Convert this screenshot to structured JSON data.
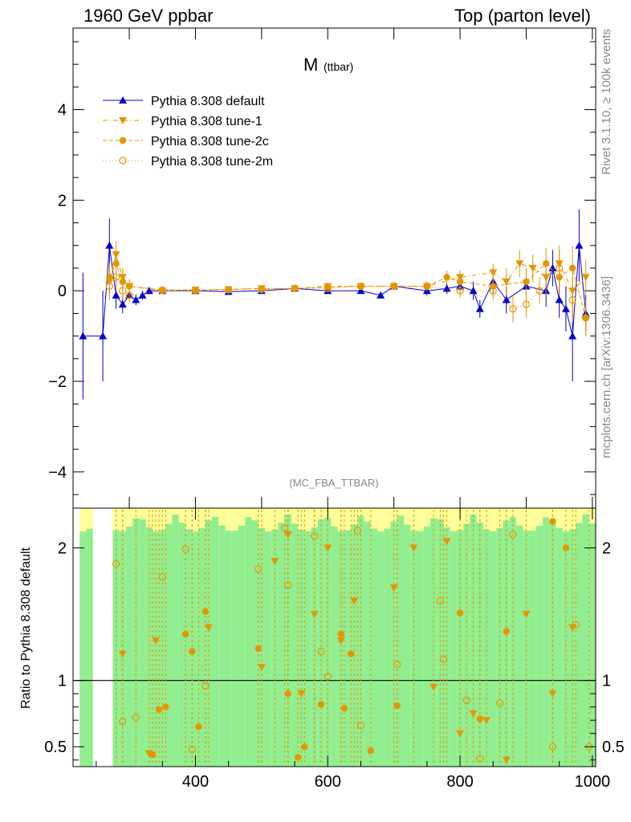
{
  "header": {
    "left": "1960 GeV ppbar",
    "right": "Top (parton level)"
  },
  "side_labels": {
    "rivet": "Rivet 3.1.10, ≥ 100k events",
    "mcplots": "mcplots.cern.ch [arXiv:1306.3436]"
  },
  "colors": {
    "default": "#0000cc",
    "tunes": "#e69500",
    "band_inner": "#90ee90",
    "band_outer": "#ffff99"
  },
  "chart_data": [
    {
      "type": "scatter",
      "title": "M",
      "title_sub": "(ttbar)",
      "watermark": "(MC_FBA_TTBAR)",
      "xlim": [
        215,
        1005
      ],
      "ylim": [
        -4.8,
        5.8
      ],
      "yticks": [
        4,
        2,
        0,
        -2,
        -4
      ],
      "ytick_labels": [
        "4",
        "2",
        "0",
        "−2",
        "−4"
      ],
      "legend": {
        "position": "top-left"
      },
      "series": [
        {
          "name": "Pythia 8.308 default",
          "marker": "triangle-up",
          "style": "solid",
          "x": [
            230,
            260,
            270,
            280,
            290,
            300,
            310,
            320,
            330,
            350,
            400,
            450,
            500,
            550,
            600,
            650,
            680,
            700,
            750,
            780,
            800,
            820,
            830,
            850,
            870,
            900,
            930,
            940,
            950,
            960,
            970,
            980,
            990
          ],
          "y": [
            -1.0,
            -1.0,
            1.0,
            -0.1,
            -0.3,
            -0.1,
            -0.2,
            -0.1,
            0.0,
            0.0,
            0.0,
            -0.02,
            0.0,
            0.05,
            0.0,
            0.0,
            -0.1,
            0.1,
            0.0,
            0.05,
            0.1,
            0.0,
            -0.4,
            0.2,
            -0.2,
            0.1,
            0.0,
            0.5,
            -0.2,
            -0.4,
            -1.0,
            1.0,
            -0.5
          ],
          "err": [
            1.4,
            1.0,
            0.6,
            0.3,
            0.2,
            0.15,
            0.12,
            0.1,
            0.08,
            0.05,
            0.03,
            0.03,
            0.03,
            0.03,
            0.04,
            0.05,
            0.06,
            0.06,
            0.1,
            0.12,
            0.15,
            0.2,
            0.2,
            0.3,
            0.3,
            0.3,
            0.35,
            0.4,
            0.4,
            0.5,
            1.0,
            0.8,
            0.4
          ]
        },
        {
          "name": "Pythia 8.308 tune-1",
          "marker": "triangle-down",
          "style": "dashdot",
          "x": [
            270,
            280,
            290,
            300,
            350,
            400,
            450,
            500,
            550,
            600,
            650,
            700,
            750,
            800,
            850,
            870,
            890,
            910,
            930,
            950,
            970,
            990
          ],
          "y": [
            0.2,
            0.8,
            0.3,
            0.1,
            0.0,
            0.02,
            0.03,
            0.05,
            0.05,
            0.1,
            0.1,
            0.1,
            0.1,
            0.3,
            0.4,
            0.2,
            0.6,
            0.5,
            0.3,
            0.6,
            0.0,
            0.3
          ],
          "err": [
            0.3,
            0.3,
            0.2,
            0.15,
            0.05,
            0.03,
            0.03,
            0.03,
            0.03,
            0.05,
            0.06,
            0.08,
            0.1,
            0.15,
            0.2,
            0.3,
            0.3,
            0.3,
            0.4,
            0.4,
            0.5,
            0.4
          ]
        },
        {
          "name": "Pythia 8.308 tune-2c",
          "marker": "circle",
          "style": "dashed",
          "x": [
            270,
            280,
            290,
            300,
            350,
            400,
            450,
            500,
            550,
            600,
            650,
            700,
            750,
            780,
            800,
            850,
            900,
            930,
            950,
            970,
            990
          ],
          "y": [
            0.3,
            0.6,
            0.2,
            0.1,
            0.02,
            0.02,
            0.03,
            0.05,
            0.05,
            0.08,
            0.1,
            0.1,
            0.1,
            0.3,
            0.2,
            0.1,
            0.2,
            0.6,
            0.3,
            0.5,
            -0.6
          ],
          "err": [
            0.3,
            0.3,
            0.2,
            0.15,
            0.05,
            0.03,
            0.03,
            0.03,
            0.03,
            0.05,
            0.06,
            0.08,
            0.1,
            0.15,
            0.2,
            0.25,
            0.3,
            0.35,
            0.4,
            0.5,
            0.4
          ]
        },
        {
          "name": "Pythia 8.308 tune-2m",
          "marker": "open-circle",
          "style": "dotted",
          "x": [
            270,
            280,
            290,
            300,
            350,
            400,
            450,
            500,
            550,
            600,
            650,
            700,
            750,
            800,
            850,
            880,
            900,
            920,
            950,
            970,
            990
          ],
          "y": [
            0.1,
            0.3,
            0.0,
            -0.1,
            0.0,
            0.0,
            0.02,
            0.03,
            0.05,
            0.05,
            0.1,
            0.1,
            0.1,
            0.0,
            0.0,
            -0.4,
            -0.3,
            0.0,
            0.5,
            -0.2,
            -0.6
          ],
          "err": [
            0.3,
            0.3,
            0.2,
            0.15,
            0.05,
            0.03,
            0.03,
            0.03,
            0.03,
            0.05,
            0.06,
            0.08,
            0.1,
            0.15,
            0.2,
            0.3,
            0.3,
            0.3,
            0.4,
            0.5,
            0.4
          ]
        }
      ]
    },
    {
      "type": "scatter",
      "ylabel": "Ratio to Pythia 8.308 default",
      "xlim": [
        215,
        1005
      ],
      "ylim": [
        0.35,
        2.3
      ],
      "yticks": [
        0.5,
        1,
        2
      ],
      "ytick_labels": [
        "0.5",
        "1",
        "2"
      ],
      "xticks": [
        400,
        600,
        800,
        1000
      ],
      "xtick_labels": [
        "400",
        "600",
        "800",
        "1000"
      ],
      "reference_line": 1,
      "series": [
        {
          "name": "Pythia 8.308 tune-1",
          "marker": "triangle-down",
          "x": [
            290,
            330,
            340,
            420,
            500,
            520,
            540,
            560,
            580,
            600,
            620,
            640,
            700,
            730,
            760,
            780,
            800,
            820,
            840,
            870,
            900,
            940,
            970
          ],
          "y": [
            1.2,
            0.45,
            1.3,
            1.4,
            1.1,
            1.9,
            2.1,
            0.9,
            1.5,
            2.0,
            1.3,
            1.6,
            1.7,
            2.0,
            0.95,
            2.05,
            0.6,
            0.75,
            0.7,
            0.4,
            1.5,
            0.9,
            1.4
          ]
        },
        {
          "name": "Pythia 8.308 tune-2c",
          "marker": "circle",
          "x": [
            335,
            345,
            355,
            385,
            395,
            405,
            415,
            495,
            540,
            555,
            565,
            590,
            620,
            625,
            635,
            665,
            705,
            800,
            830,
            870,
            940,
            960
          ],
          "y": [
            0.44,
            0.78,
            0.8,
            1.35,
            1.22,
            0.65,
            1.52,
            1.24,
            0.9,
            0.42,
            0.5,
            0.82,
            1.35,
            0.79,
            1.2,
            0.47,
            0.81,
            1.51,
            0.71,
            1.37,
            2.2,
            2.0
          ]
        },
        {
          "name": "Pythia 8.308 tune-2m",
          "marker": "open-circle",
          "x": [
            280,
            290,
            310,
            350,
            385,
            395,
            415,
            495,
            535,
            540,
            580,
            590,
            600,
            645,
            650,
            705,
            770,
            775,
            810,
            830,
            860,
            880,
            940,
            975,
            995
          ],
          "y": [
            1.88,
            0.69,
            0.72,
            1.78,
            1.99,
            0.48,
            0.96,
            1.84,
            2.15,
            1.72,
            2.09,
            1.22,
            1.03,
            2.13,
            0.66,
            1.12,
            1.6,
            1.16,
            0.85,
            0.41,
            0.83,
            2.1,
            0.5,
            1.42,
            0.5
          ]
        }
      ]
    }
  ]
}
